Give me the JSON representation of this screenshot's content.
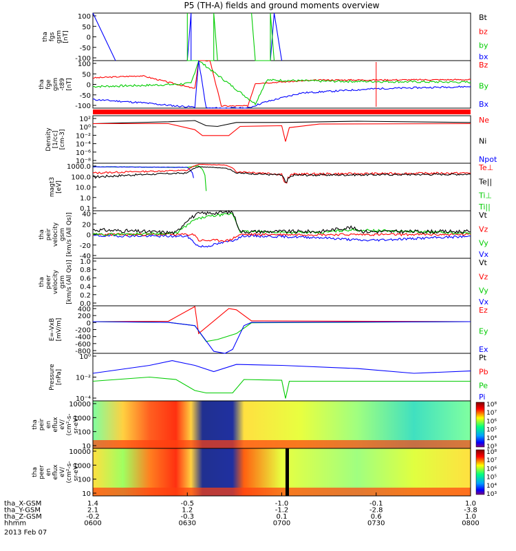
{
  "title": "P5 (TH-A) fields and ground moments overview",
  "colors": {
    "black": "#000000",
    "red": "#ff0000",
    "green": "#00cc00",
    "blue": "#0000ff",
    "bar": "#ff0000"
  },
  "panels": [
    {
      "key": "fgs",
      "ylabel": [
        "tha",
        "fgs",
        "gsm",
        "[nT]"
      ],
      "ticks": [
        "100",
        "50",
        "0",
        "-50",
        "-100"
      ],
      "legend": [
        {
          "label": "Bt",
          "color": "black"
        },
        {
          "label": "bz",
          "color": "red"
        },
        {
          "label": "by",
          "color": "green"
        },
        {
          "label": "bx",
          "color": "blue"
        }
      ]
    },
    {
      "key": "fge",
      "ylabel": [
        "tha",
        "fge",
        "gsm",
        "-t89",
        "[nT]"
      ],
      "ticks": [
        "100",
        "50",
        "0",
        "-50",
        "-100"
      ],
      "legend": [
        {
          "label": "Bz",
          "color": "red"
        },
        {
          "label": "By",
          "color": "green"
        },
        {
          "label": "Bx",
          "color": "blue"
        }
      ]
    },
    {
      "key": "density",
      "ylabel": [
        "Density",
        "[1/cc]",
        "[cm-3]"
      ],
      "ticks": [
        "10²",
        "10⁰",
        "10⁻²",
        "10⁻⁴",
        "10⁻⁶",
        "10⁻⁸"
      ],
      "legend": [
        {
          "label": "Ne",
          "color": "red"
        },
        {
          "label": "Ni",
          "color": "black"
        },
        {
          "label": "Npot",
          "color": "blue"
        }
      ]
    },
    {
      "key": "temp",
      "ylabel": [
        "magt3",
        "[eV]"
      ],
      "ticks": [
        "1000.0",
        "100.0",
        "10.0",
        "1.0",
        "0.1"
      ],
      "legend": [
        {
          "label": "Te⊥",
          "color": "red"
        },
        {
          "label": "Te||",
          "color": "black"
        },
        {
          "label": "Ti⊥",
          "color": "green"
        },
        {
          "label": "Ti||",
          "color": "green"
        }
      ]
    },
    {
      "key": "peir_vel",
      "ylabel": [
        "tha",
        "peir",
        "velocity",
        "gsm",
        "[km/s (All Qs)]"
      ],
      "ticks": [
        "40",
        "20",
        "0",
        "-20",
        "-40"
      ],
      "legend": [
        {
          "label": "Vt",
          "color": "black"
        },
        {
          "label": "Vz",
          "color": "red"
        },
        {
          "label": "Vy",
          "color": "green"
        },
        {
          "label": "Vx",
          "color": "blue"
        }
      ]
    },
    {
      "key": "peer_vel",
      "ylabel": [
        "tha",
        "peer",
        "velocity",
        "gsm",
        "[km/s (All Qs)]"
      ],
      "ticks": [
        "1.0",
        "0.8",
        "0.6",
        "0.4",
        "0.2",
        "0.0"
      ],
      "legend": [
        {
          "label": "Vt",
          "color": "black"
        },
        {
          "label": "Vz",
          "color": "red"
        },
        {
          "label": "Vy",
          "color": "green"
        },
        {
          "label": "Vx",
          "color": "blue"
        }
      ]
    },
    {
      "key": "efield",
      "ylabel": [
        "E=-VxB",
        "[mV/m]"
      ],
      "ticks": [
        "400",
        "200",
        "0",
        "-200",
        "-400",
        "-600",
        "-800"
      ],
      "legend": [
        {
          "label": "Ez",
          "color": "red"
        },
        {
          "label": "Ey",
          "color": "green"
        },
        {
          "label": "Ex",
          "color": "blue"
        }
      ]
    },
    {
      "key": "pressure",
      "ylabel": [
        "Pressure",
        "[nPa]"
      ],
      "ticks": [
        "10⁰",
        "10⁻²",
        "10⁻⁴"
      ],
      "legend": [
        {
          "label": "Pt",
          "color": "black"
        },
        {
          "label": "Pb",
          "color": "red"
        },
        {
          "label": "Pe",
          "color": "green"
        },
        {
          "label": "Pi",
          "color": "blue"
        }
      ]
    },
    {
      "key": "peir_spec",
      "ylabel": [
        "tha",
        "peir",
        "en",
        "eflux",
        "eV/",
        "(cm²-s-",
        "sr-eV)"
      ],
      "ticks": [
        "10000",
        "1000",
        "100",
        "10"
      ],
      "cbar": [
        "10⁸",
        "10⁷",
        "10⁶",
        "10⁵",
        "10⁴",
        "10³"
      ]
    },
    {
      "key": "peer_spec",
      "ylabel": [
        "tha",
        "peer",
        "en",
        "eflux",
        "eV/",
        "(cm²-s-",
        "sr-eV)"
      ],
      "ticks": [
        "10000",
        "1000",
        "100",
        "10"
      ],
      "cbar": [
        "10⁸",
        "10⁷",
        "10⁶",
        "10⁵",
        "10⁴",
        "10³"
      ]
    }
  ],
  "xaxis": {
    "rows": [
      {
        "label": "tha_X-GSM",
        "values": [
          "1.4",
          "-0.5",
          "-1.0",
          "-0.1",
          "1.0"
        ]
      },
      {
        "label": "tha_Y-GSM",
        "values": [
          "2.1",
          "1.2",
          "-1.2",
          "-2.8",
          "-3.8"
        ]
      },
      {
        "label": "tha_Z-GSM",
        "values": [
          "-0.2",
          "-0.3",
          "0.1",
          "0.6",
          "1.0"
        ]
      },
      {
        "label": "hhmm",
        "values": [
          "0600",
          "0630",
          "0700",
          "0730",
          "0800"
        ]
      }
    ],
    "date": "2013 Feb 07"
  },
  "chart_data": [
    {
      "type": "line",
      "title": "P5 (TH-A) fields and ground moments overview",
      "ylabel": "tha fgs gsm [nT]",
      "ylim": [
        -100,
        100
      ],
      "x": [
        "0600",
        "0630",
        "0700",
        "0730",
        "0800"
      ],
      "series": [
        {
          "name": "bx",
          "values": [
            100,
            -100,
            -100,
            -100,
            -100
          ]
        },
        {
          "name": "by",
          "values": [
            0,
            100,
            -100,
            0,
            0
          ]
        }
      ]
    },
    {
      "type": "line",
      "ylabel": "tha fge gsm-t89 [nT]",
      "ylim": [
        -120,
        100
      ],
      "x": [
        "0600",
        "0615",
        "0630",
        "0645",
        "0700",
        "0730",
        "0800"
      ],
      "series": [
        {
          "name": "Bz",
          "values": [
            20,
            25,
            -50,
            100,
            -5,
            5,
            10
          ]
        },
        {
          "name": "By",
          "values": [
            -20,
            -20,
            -10,
            100,
            10,
            5,
            0
          ]
        },
        {
          "name": "Bx",
          "values": [
            -80,
            -100,
            -120,
            100,
            -100,
            -40,
            -20
          ]
        }
      ]
    },
    {
      "type": "line",
      "ylabel": "Density [1/cc]",
      "yscale": "log",
      "ylim": [
        1e-09,
        1000.0
      ],
      "x": [
        "0600",
        "0615",
        "0630",
        "0645",
        "0700",
        "0730",
        "0800"
      ],
      "series": [
        {
          "name": "Ne",
          "values": [
            10,
            15,
            0.03,
            0.05,
            3,
            10,
            10
          ]
        },
        {
          "name": "Ni",
          "values": [
            30,
            50,
            0.5,
            20,
            20,
            30,
            20
          ]
        }
      ]
    },
    {
      "type": "line",
      "ylabel": "magt3 [eV]",
      "yscale": "log",
      "ylim": [
        0.1,
        1000
      ],
      "x": [
        "0600",
        "0615",
        "0630",
        "0645",
        "0700",
        "0730",
        "0800"
      ],
      "series": [
        {
          "name": "Te⊥",
          "values": [
            150,
            200,
            800,
            700,
            100,
            150,
            150
          ]
        },
        {
          "name": "Te||",
          "values": [
            70,
            100,
            500,
            400,
            100,
            130,
            120
          ]
        },
        {
          "name": "Ti⊥",
          "values": [
            500,
            450,
            1.2,
            1.5,
            500,
            550,
            550
          ]
        },
        {
          "name": "Ti||",
          "values": [
            500,
            450,
            1.2,
            1.5,
            500,
            550,
            550
          ]
        }
      ]
    },
    {
      "type": "line",
      "ylabel": "tha peir velocity gsm [km/s]",
      "ylim": [
        -40,
        40
      ],
      "x": [
        "0600",
        "0615",
        "0630",
        "0645",
        "0700",
        "0730",
        "0800"
      ],
      "series": [
        {
          "name": "Vt",
          "values": [
            8,
            5,
            35,
            38,
            3,
            10,
            5
          ]
        },
        {
          "name": "Vz",
          "values": [
            0,
            0,
            -10,
            -5,
            0,
            -2,
            0
          ]
        },
        {
          "name": "Vy",
          "values": [
            0,
            0,
            28,
            35,
            2,
            5,
            2
          ]
        },
        {
          "name": "Vx",
          "values": [
            -2,
            0,
            -20,
            -5,
            -2,
            -8,
            -3
          ]
        }
      ]
    },
    {
      "type": "line",
      "ylabel": "tha peer velocity gsm [km/s]",
      "ylim": [
        0,
        1
      ],
      "x": [],
      "series": []
    },
    {
      "type": "line",
      "ylabel": "E=-VxB [mV/m]",
      "ylim": [
        -800,
        400
      ],
      "x": [
        "0600",
        "0615",
        "0630",
        "0640",
        "0650",
        "0700",
        "0800"
      ],
      "series": [
        {
          "name": "Ez",
          "values": [
            0,
            10,
            380,
            -300,
            350,
            20,
            0
          ]
        },
        {
          "name": "Ey",
          "values": [
            0,
            -20,
            -100,
            -500,
            -300,
            -20,
            0
          ]
        },
        {
          "name": "Ex",
          "values": [
            0,
            -20,
            -100,
            -800,
            -700,
            -20,
            0
          ]
        }
      ]
    },
    {
      "type": "line",
      "ylabel": "Pressure [nPa]",
      "yscale": "log",
      "ylim": [
        1e-05,
        10
      ],
      "x": [
        "0600",
        "0615",
        "0630",
        "0645",
        "0700",
        "0730",
        "0800"
      ],
      "series": [
        {
          "name": "Pi",
          "values": [
            0.03,
            0.2,
            1,
            0.05,
            0.3,
            0.15,
            0.05
          ]
        },
        {
          "name": "Pe",
          "values": [
            0.003,
            0.01,
            0.0001,
            0.005,
            0.003,
            0.004,
            0.003
          ]
        }
      ]
    },
    {
      "type": "heatmap",
      "ylabel": "tha peir en eflux",
      "yscale": "log",
      "ylim": [
        5,
        20000
      ],
      "zlim": [
        1000.0,
        100000000.0
      ]
    },
    {
      "type": "heatmap",
      "ylabel": "tha peer en eflux",
      "yscale": "log",
      "ylim": [
        5,
        20000
      ],
      "zlim": [
        1000.0,
        100000000.0
      ]
    }
  ]
}
